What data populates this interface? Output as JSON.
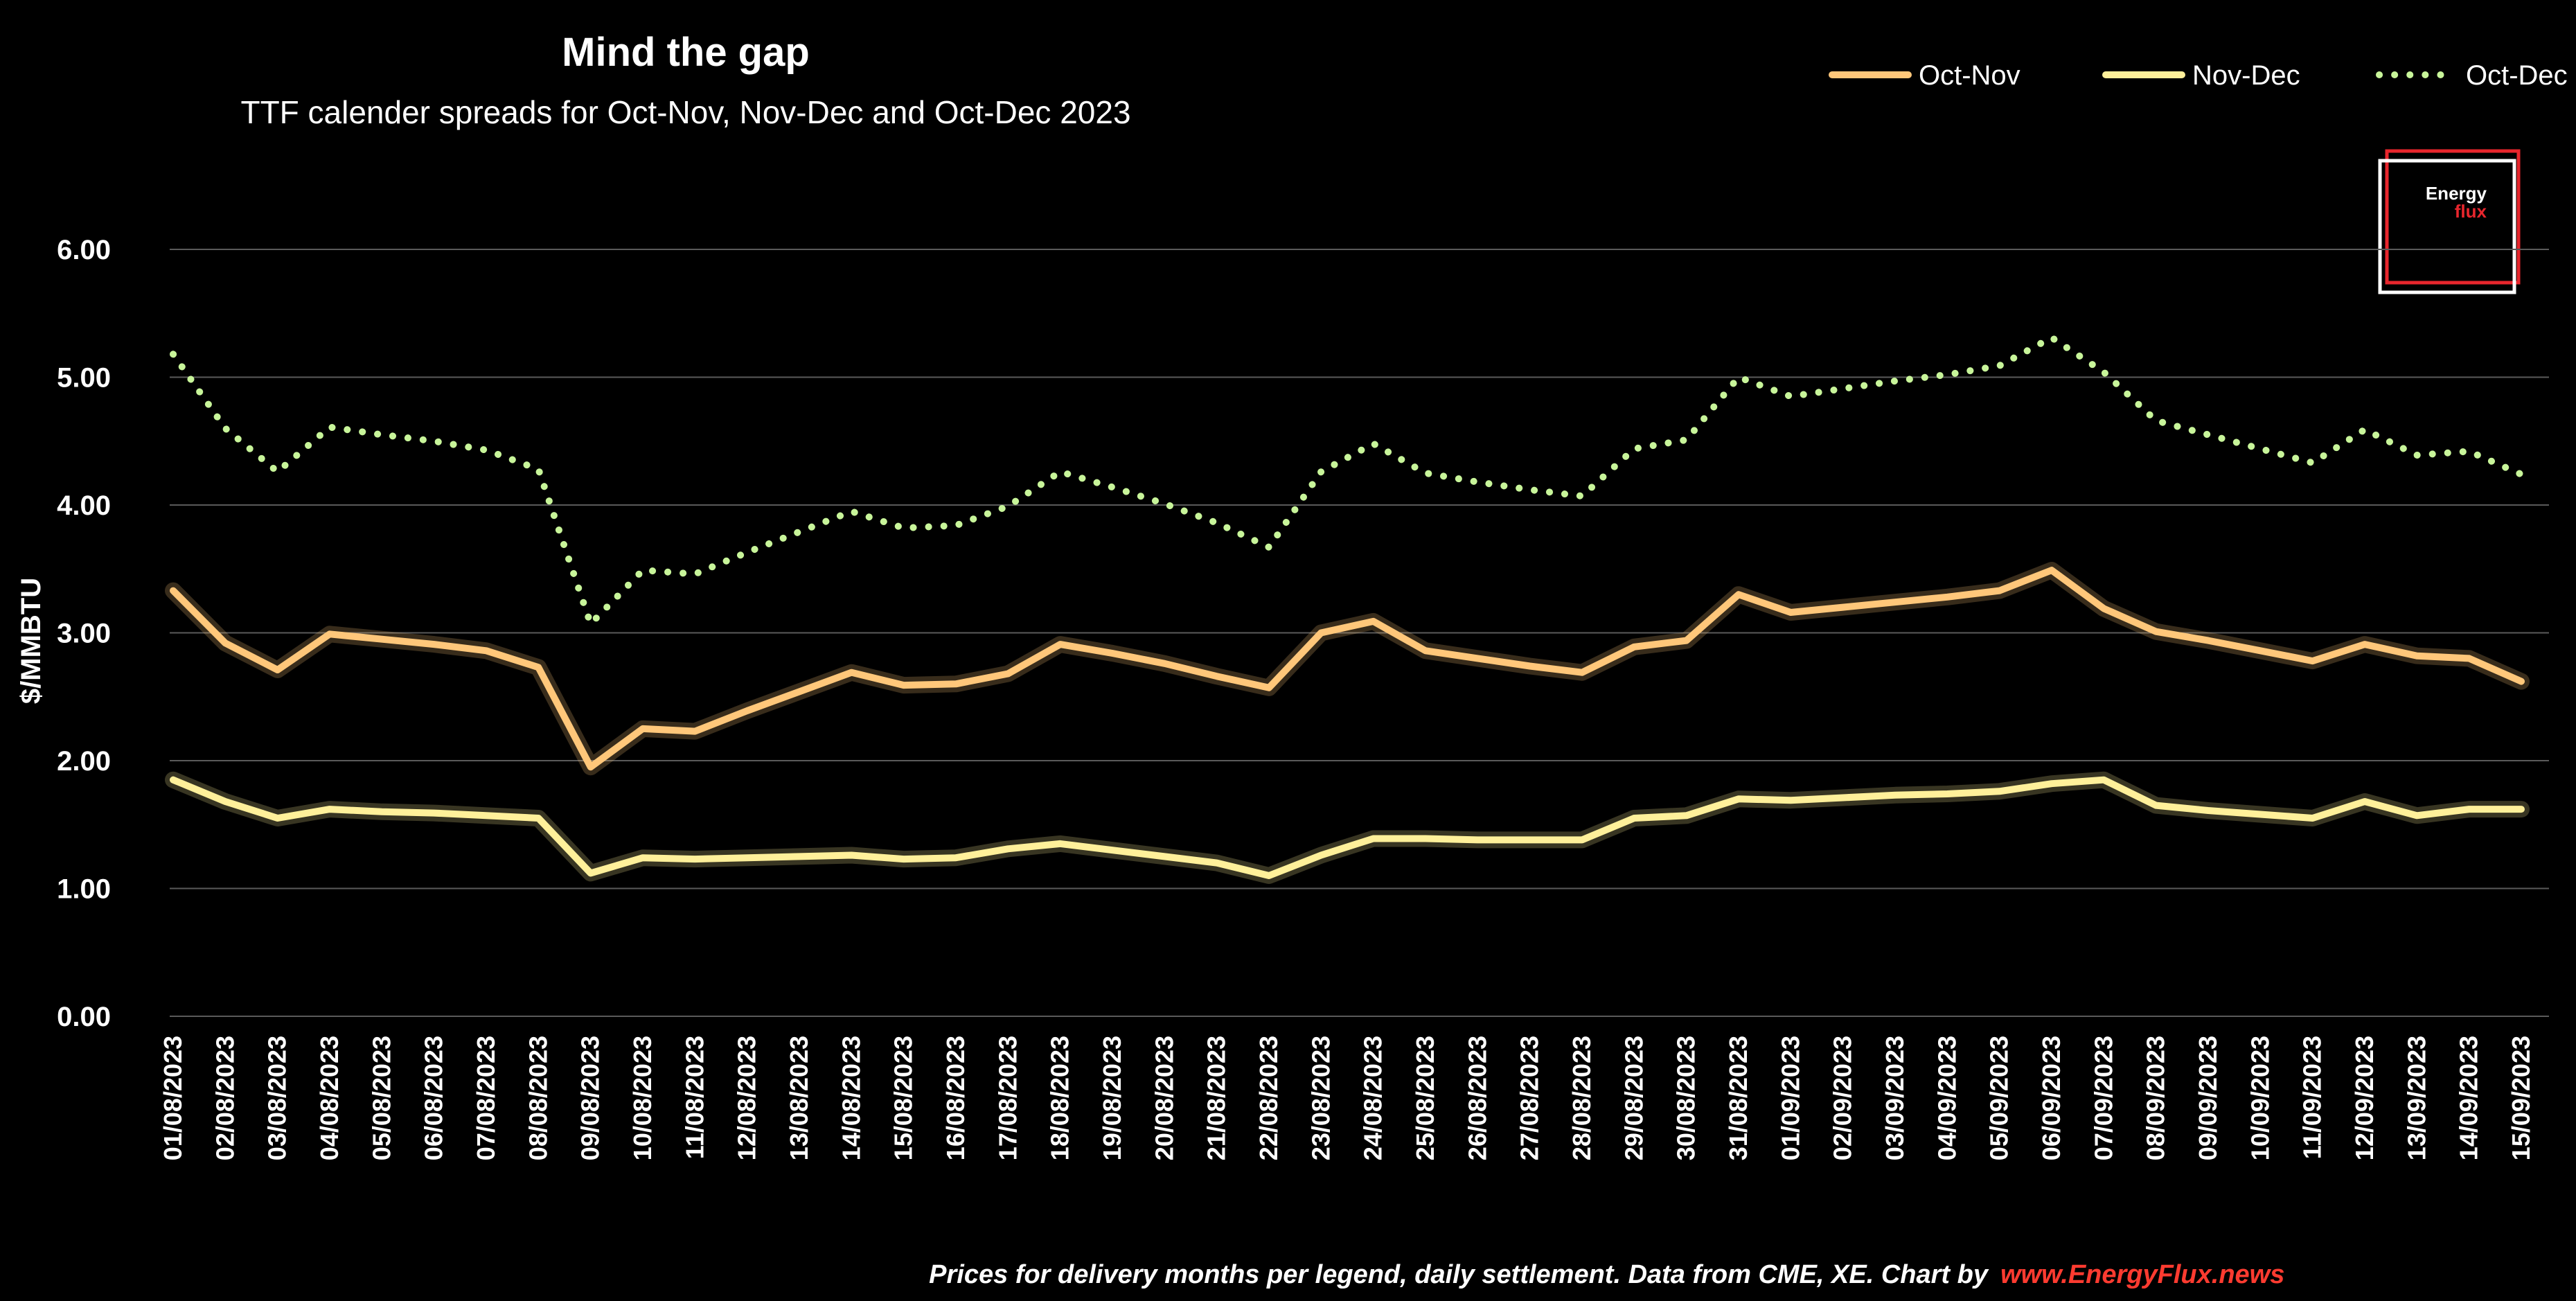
{
  "title": "Mind the gap",
  "subtitle": "TTF calender spreads for Oct-Nov, Nov-Dec and Oct-Dec 2023",
  "footer": {
    "note": "Prices for delivery months per legend, daily settlement. Data from CME, XE. Chart by",
    "link": "www.EnergyFlux.news"
  },
  "logo": {
    "line1": "Energy",
    "line2": "flux"
  },
  "colors": {
    "background": "#000000",
    "oct_nov": "#FFC77A",
    "nov_dec": "#FFF09A",
    "oct_dec": "#C8F59A",
    "link": "#FF3B30",
    "logo_red": "#E8262D"
  },
  "chart_data": {
    "type": "line",
    "ylabel": "$/MMBTU",
    "ylim": [
      0,
      6
    ],
    "yticks": [
      "0.00",
      "1.00",
      "2.00",
      "3.00",
      "4.00",
      "5.00",
      "6.00"
    ],
    "grid": true,
    "legend_position": "top-right",
    "categories": [
      "01/08/2023",
      "02/08/2023",
      "03/08/2023",
      "04/08/2023",
      "05/08/2023",
      "06/08/2023",
      "07/08/2023",
      "08/08/2023",
      "09/08/2023",
      "10/08/2023",
      "11/08/2023",
      "12/08/2023",
      "13/08/2023",
      "14/08/2023",
      "15/08/2023",
      "16/08/2023",
      "17/08/2023",
      "18/08/2023",
      "19/08/2023",
      "20/08/2023",
      "21/08/2023",
      "22/08/2023",
      "23/08/2023",
      "24/08/2023",
      "25/08/2023",
      "26/08/2023",
      "27/08/2023",
      "28/08/2023",
      "29/08/2023",
      "30/08/2023",
      "31/08/2023",
      "01/09/2023",
      "02/09/2023",
      "03/09/2023",
      "04/09/2023",
      "05/09/2023",
      "06/09/2023",
      "07/09/2023",
      "08/09/2023",
      "09/09/2023",
      "10/09/2023",
      "11/09/2023",
      "12/09/2023",
      "13/09/2023",
      "14/09/2023",
      "15/09/2023"
    ],
    "series": [
      {
        "name": "Oct-Nov",
        "style": "solid",
        "color": "#FFC77A",
        "values": [
          3.33,
          2.92,
          2.71,
          2.99,
          2.95,
          2.91,
          2.86,
          2.73,
          1.95,
          2.25,
          2.23,
          2.39,
          2.54,
          2.69,
          2.59,
          2.6,
          2.68,
          2.91,
          2.84,
          2.76,
          2.66,
          2.57,
          3.0,
          3.09,
          2.86,
          2.8,
          2.74,
          2.69,
          2.89,
          2.94,
          3.3,
          3.16,
          3.2,
          3.24,
          3.28,
          3.33,
          3.49,
          3.19,
          3.01,
          2.94,
          2.86,
          2.78,
          2.91,
          2.82,
          2.8,
          2.62
        ]
      },
      {
        "name": "Nov-Dec",
        "style": "solid",
        "color": "#FFF09A",
        "values": [
          1.85,
          1.68,
          1.55,
          1.62,
          1.6,
          1.59,
          1.57,
          1.55,
          1.12,
          1.24,
          1.23,
          1.24,
          1.25,
          1.26,
          1.23,
          1.24,
          1.31,
          1.35,
          1.3,
          1.25,
          1.2,
          1.1,
          1.26,
          1.39,
          1.39,
          1.38,
          1.38,
          1.38,
          1.55,
          1.57,
          1.7,
          1.69,
          1.71,
          1.73,
          1.74,
          1.76,
          1.82,
          1.85,
          1.65,
          1.61,
          1.58,
          1.55,
          1.68,
          1.57,
          1.62,
          1.62
        ]
      },
      {
        "name": "Oct-Dec",
        "style": "dotted",
        "color": "#C8F59A",
        "values": [
          5.18,
          4.6,
          4.26,
          4.61,
          4.55,
          4.5,
          4.43,
          4.28,
          3.07,
          3.49,
          3.46,
          3.63,
          3.79,
          3.95,
          3.82,
          3.84,
          3.99,
          4.26,
          4.14,
          4.01,
          3.86,
          3.67,
          4.26,
          4.48,
          4.25,
          4.18,
          4.12,
          4.07,
          4.44,
          4.51,
          5.0,
          4.85,
          4.91,
          4.97,
          5.02,
          5.09,
          5.31,
          5.04,
          4.66,
          4.55,
          4.44,
          4.33,
          4.59,
          4.39,
          4.42,
          4.24
        ]
      }
    ]
  }
}
